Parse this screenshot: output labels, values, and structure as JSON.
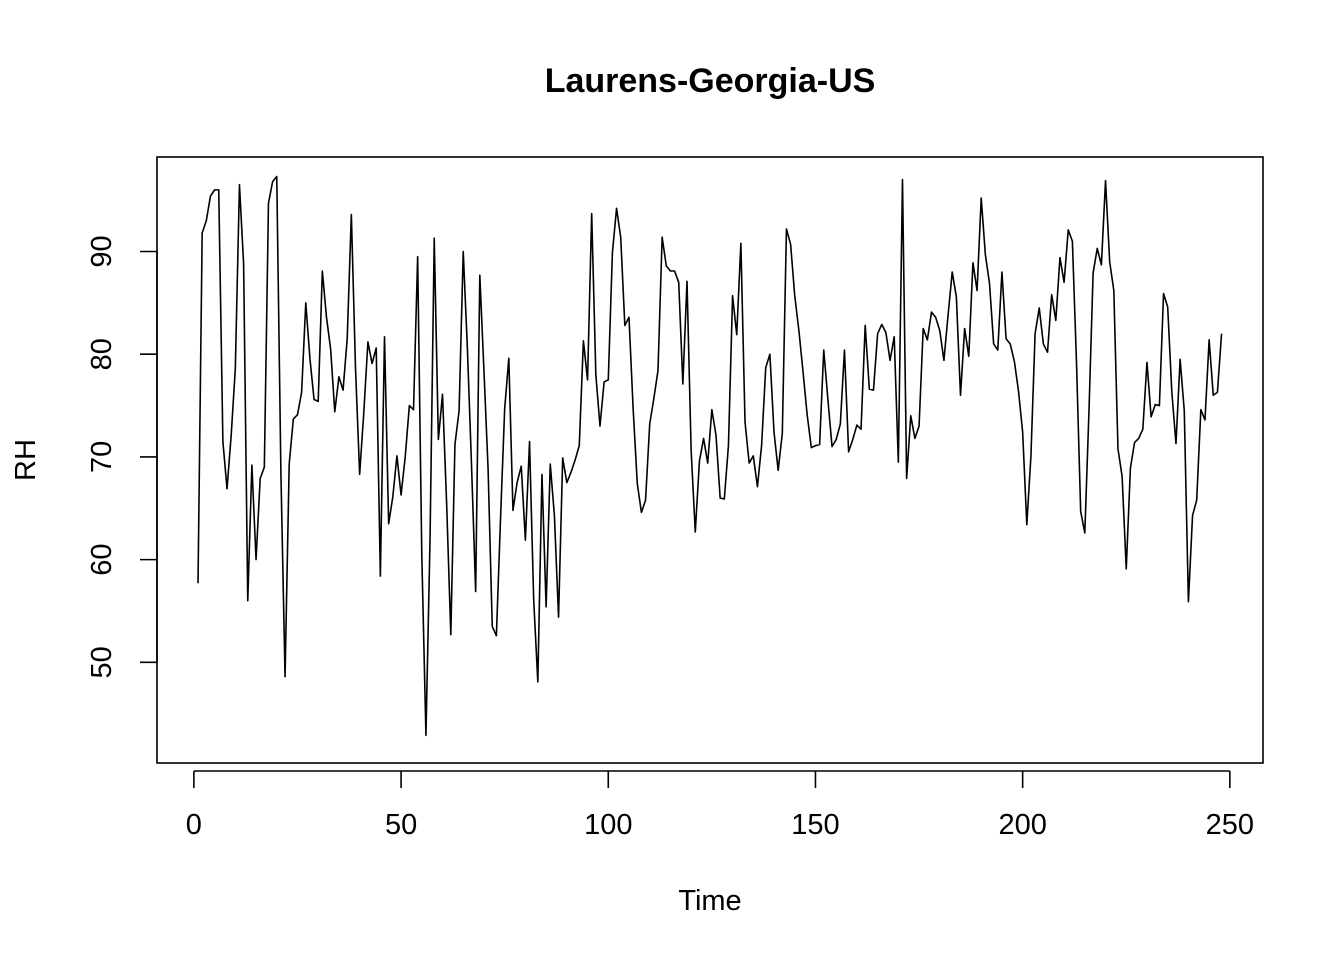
{
  "chart_data": {
    "type": "line",
    "title": "Laurens-Georgia-US",
    "xlabel": "Time",
    "ylabel": "RH",
    "xlim": [
      -8.9,
      258
    ],
    "ylim": [
      40.2,
      99.2
    ],
    "xticks": [
      0,
      50,
      100,
      150,
      200,
      250
    ],
    "yticks": [
      50,
      60,
      70,
      80,
      90
    ],
    "grid": false,
    "series": [
      {
        "color": "#000000",
        "x": [
          1,
          2,
          3,
          4,
          5,
          6,
          7,
          8,
          9,
          10,
          11,
          12,
          13,
          14,
          15,
          16,
          17,
          18,
          19,
          20,
          21,
          22,
          23,
          24,
          25,
          26,
          27,
          28,
          29,
          30,
          31,
          32,
          33,
          34,
          35,
          36,
          37,
          38,
          39,
          40,
          41,
          42,
          43,
          44,
          45,
          46,
          47,
          48,
          49,
          50,
          51,
          52,
          53,
          54,
          55,
          56,
          57,
          58,
          59,
          60,
          61,
          62,
          63,
          64,
          65,
          66,
          67,
          68,
          69,
          70,
          71,
          72,
          73,
          74,
          75,
          76,
          77,
          78,
          79,
          80,
          81,
          82,
          83,
          84,
          85,
          86,
          87,
          88,
          89,
          90,
          91,
          92,
          93,
          94,
          95,
          96,
          97,
          98,
          99,
          100,
          101,
          102,
          103,
          104,
          105,
          106,
          107,
          108,
          109,
          110,
          111,
          112,
          113,
          114,
          115,
          116,
          117,
          118,
          119,
          120,
          121,
          122,
          123,
          124,
          125,
          126,
          127,
          128,
          129,
          130,
          131,
          132,
          133,
          134,
          135,
          136,
          137,
          138,
          139,
          140,
          141,
          142,
          143,
          144,
          145,
          146,
          147,
          148,
          149,
          150,
          151,
          152,
          153,
          154,
          155,
          156,
          157,
          158,
          159,
          160,
          161,
          162,
          163,
          164,
          165,
          166,
          167,
          168,
          169,
          170,
          171,
          172,
          173,
          174,
          175,
          176,
          177,
          178,
          179,
          180,
          181,
          182,
          183,
          184,
          185,
          186,
          187,
          188,
          189,
          190,
          191,
          192,
          193,
          194,
          195,
          196,
          197,
          198,
          199,
          200,
          201,
          202,
          203,
          204,
          205,
          206,
          207,
          208,
          209,
          210,
          211,
          212,
          213,
          214,
          215,
          216,
          217,
          218,
          219,
          220,
          221,
          222,
          223,
          224,
          225,
          226,
          227,
          228,
          229,
          230,
          231,
          232,
          233,
          234,
          235,
          236,
          237,
          238,
          239,
          240,
          241,
          242,
          243,
          244,
          245,
          246,
          247,
          248
        ],
        "y": [
          57.7,
          91.8,
          93.0,
          95.4,
          96.0,
          96.0,
          71.5,
          66.9,
          72.1,
          78.6,
          96.5,
          88.8,
          56.0,
          69.2,
          60.0,
          67.9,
          69.0,
          94.7,
          96.8,
          97.3,
          68.5,
          48.6,
          69.3,
          73.7,
          74.1,
          76.3,
          85.0,
          79.6,
          75.6,
          75.4,
          88.1,
          83.6,
          80.5,
          74.4,
          77.8,
          76.5,
          81.5,
          93.6,
          78.7,
          68.3,
          74.3,
          81.2,
          79.1,
          80.6,
          58.4,
          81.7,
          63.5,
          66.1,
          70.1,
          66.3,
          70.0,
          75.0,
          74.6,
          89.5,
          60.5,
          42.9,
          62.2,
          91.3,
          71.7,
          76.1,
          65.4,
          52.7,
          71.2,
          74.5,
          90.0,
          80.6,
          69.2,
          56.9,
          87.7,
          78.4,
          68.8,
          53.5,
          52.6,
          64.0,
          74.7,
          79.6,
          64.8,
          67.5,
          69.1,
          61.9,
          71.5,
          56.1,
          48.1,
          68.3,
          55.4,
          69.3,
          64.3,
          54.4,
          69.9,
          67.5,
          68.5,
          69.7,
          71.1,
          81.3,
          77.5,
          93.7,
          78.0,
          73.0,
          77.3,
          77.5,
          89.9,
          94.2,
          91.4,
          82.8,
          83.6,
          74.7,
          67.4,
          64.6,
          65.8,
          73.2,
          75.7,
          78.4,
          91.4,
          88.6,
          88.1,
          88.1,
          87.0,
          77.1,
          87.1,
          70.6,
          62.7,
          69.6,
          71.8,
          69.4,
          74.6,
          72.1,
          66.0,
          65.9,
          71.1,
          85.7,
          81.9,
          90.8,
          73.4,
          69.4,
          70.1,
          67.1,
          71.1,
          78.7,
          80.0,
          72.4,
          68.7,
          72.3,
          92.2,
          90.7,
          85.7,
          82.3,
          78.3,
          74.1,
          70.9,
          71.1,
          71.2,
          80.4,
          75.6,
          71.0,
          71.7,
          73.2,
          80.4,
          70.5,
          71.7,
          73.1,
          72.7,
          82.8,
          76.6,
          76.5,
          82.0,
          82.9,
          82.1,
          79.4,
          81.7,
          69.5,
          97.0,
          67.9,
          74.0,
          71.8,
          73.0,
          82.5,
          81.4,
          84.1,
          83.6,
          82.3,
          79.4,
          83.8,
          88.0,
          85.6,
          76.0,
          82.5,
          79.8,
          88.9,
          86.2,
          95.2,
          89.7,
          86.9,
          81.0,
          80.4,
          88.0,
          81.5,
          81.0,
          79.3,
          76.4,
          72.4,
          63.4,
          70.1,
          82.0,
          84.5,
          81.0,
          80.2,
          85.8,
          83.3,
          89.4,
          87.0,
          92.1,
          91.0,
          79.1,
          64.7,
          62.6,
          74.4,
          87.9,
          90.3,
          88.7,
          96.9,
          89.0,
          86.2,
          70.8,
          68.1,
          59.1,
          68.9,
          71.4,
          71.8,
          72.7,
          79.2,
          73.9,
          75.1,
          75.0,
          85.9,
          84.6,
          76.3,
          71.3,
          79.5,
          74.5,
          55.9,
          64.3,
          65.8,
          74.6,
          73.6,
          81.4,
          76.0,
          76.3,
          82.0
        ]
      }
    ]
  }
}
